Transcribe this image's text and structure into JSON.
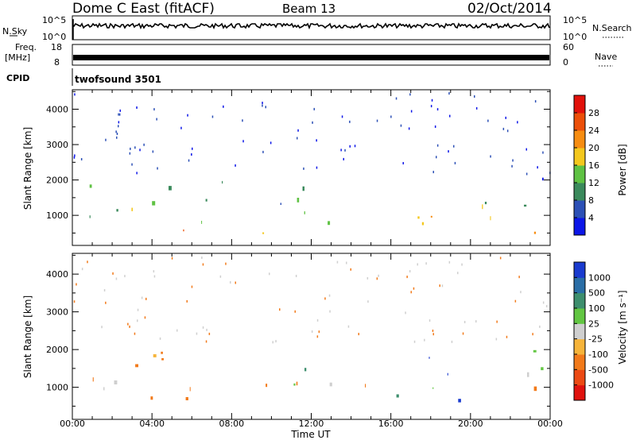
{
  "header": {
    "title": "Dome C East (fitACF)",
    "beam": "Beam 13",
    "date": "02/Oct/2014"
  },
  "strips": {
    "nsky": {
      "left_label": "N.Sky",
      "left_ticks": [
        "10^5",
        "10^0"
      ],
      "right_label": "N.Search",
      "right_ticks": [
        "10^5",
        "10^0"
      ]
    },
    "freq": {
      "left_label_line1": "Freq.",
      "left_label_line2": "[MHz]",
      "left_ticks": [
        "18",
        "8"
      ],
      "right_label": "Nave",
      "right_ticks": [
        "60",
        "0"
      ]
    },
    "cpid": {
      "label": "CPID",
      "text": "twofsound 3501"
    }
  },
  "chart_data": [
    {
      "type": "heatmap",
      "panel": "power",
      "ylabel": "Slant Range [km]",
      "ylim": [
        150,
        4550
      ],
      "yticks": [
        1000,
        2000,
        3000,
        4000
      ],
      "xlim": [
        0,
        24
      ],
      "colorbar": {
        "label": "Power [dB]",
        "ticks": [
          "4",
          "8",
          "12",
          "16",
          "20",
          "24",
          "28"
        ],
        "colors": [
          "#0c16e8",
          "#2c50b6",
          "#3b8a5c",
          "#5fc243",
          "#f4c81d",
          "#f78d11",
          "#ec4f09",
          "#e2110b"
        ]
      }
    },
    {
      "type": "heatmap",
      "panel": "velocity",
      "ylabel": "Slant Range [km]",
      "ylim": [
        150,
        4550
      ],
      "yticks": [
        1000,
        2000,
        3000,
        4000
      ],
      "xlim": [
        0,
        24
      ],
      "xlabel": "Time UT",
      "xticks": [
        "00:00",
        "04:00",
        "08:00",
        "12:00",
        "16:00",
        "20:00",
        "00:00"
      ],
      "colorbar": {
        "label": "Velocity [m s⁻¹]",
        "ticks": [
          "1000",
          "500",
          "100",
          "25",
          "-25",
          "-100",
          "-500",
          "-1000"
        ],
        "colors": [
          "#1a3bcf",
          "#2a6ea6",
          "#3e8f6e",
          "#62c642",
          "#cfcfcf",
          "#f6b43a",
          "#f27a1a",
          "#ec4a14",
          "#e0120e"
        ]
      }
    }
  ]
}
